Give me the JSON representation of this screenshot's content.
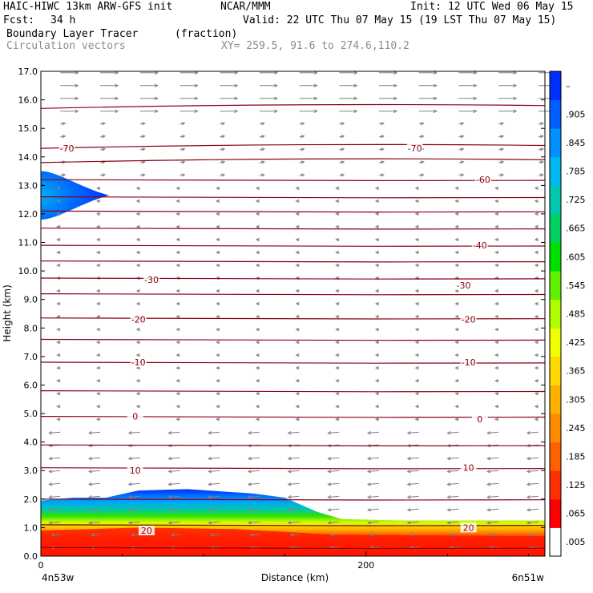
{
  "header": {
    "model": "HAIC-HIWC 13km ARW-GFS init",
    "org": "NCAR/MMM",
    "init": "Init: 12 UTC Wed 06 May 15",
    "fcst_label": "Fcst:",
    "fcst_value": "34 h",
    "valid": "Valid: 22 UTC Thu 07 May 15 (19 LST Thu 07 May 15)",
    "field": "Boundary Layer Tracer",
    "units": "(fraction)",
    "vectors": "Circulation vectors",
    "xy": "XY= 259.5, 91.6 to 274.6,110.2"
  },
  "colors": {
    "contour": "#8a0010",
    "vector": "#808080",
    "colorbar": [
      "#ffffff",
      "#ff0000",
      "#ff3000",
      "#ff6000",
      "#ff8a00",
      "#ffb000",
      "#ffd800",
      "#f0ff00",
      "#b0ff00",
      "#60f000",
      "#00e000",
      "#00d060",
      "#00c8b0",
      "#00b8f0",
      "#0090ff",
      "#0060ff",
      "#0030ff"
    ]
  },
  "chart_data": {
    "type": "contour",
    "xlabel": "Distance (km)",
    "ylabel": "Height (km)",
    "xlim": [
      0,
      310
    ],
    "ylim": [
      0,
      17
    ],
    "x_ticks": [
      "0",
      "200"
    ],
    "x_end_labels": [
      "4n53w",
      "6n51w"
    ],
    "y_ticks": [
      "0.0",
      "1.0",
      "2.0",
      "3.0",
      "4.0",
      "5.0",
      "6.0",
      "7.0",
      "8.0",
      "9.0",
      "10.0",
      "11.0",
      "12.0",
      "13.0",
      "14.0",
      "15.0",
      "16.0",
      "17.0"
    ],
    "colorbar_labels": [
      ".005",
      ".065",
      ".125",
      ".185",
      ".245",
      ".305",
      ".365",
      ".425",
      ".485",
      ".545",
      ".605",
      ".665",
      ".725",
      ".785",
      ".845",
      ".905",
      "–"
    ],
    "contour_labels": [
      {
        "text": "-70",
        "x": 16,
        "y": 14.3
      },
      {
        "text": "-70",
        "x": 230,
        "y": 14.3
      },
      {
        "text": "-60",
        "x": 272,
        "y": 13.2
      },
      {
        "text": "-40",
        "x": 270,
        "y": 10.9
      },
      {
        "text": "-30",
        "x": 68,
        "y": 9.7
      },
      {
        "text": "-30",
        "x": 260,
        "y": 9.5
      },
      {
        "text": "-20",
        "x": 60,
        "y": 8.3
      },
      {
        "text": "-20",
        "x": 263,
        "y": 8.3
      },
      {
        "text": "-10",
        "x": 60,
        "y": 6.8
      },
      {
        "text": "-10",
        "x": 263,
        "y": 6.8
      },
      {
        "text": "0",
        "x": 58,
        "y": 4.9
      },
      {
        "text": "0",
        "x": 270,
        "y": 4.8
      },
      {
        "text": "10",
        "x": 58,
        "y": 3.0
      },
      {
        "text": "10",
        "x": 263,
        "y": 3.1
      },
      {
        "text": "20",
        "x": 65,
        "y": 0.9
      },
      {
        "text": "20",
        "x": 263,
        "y": 1.0
      }
    ]
  }
}
